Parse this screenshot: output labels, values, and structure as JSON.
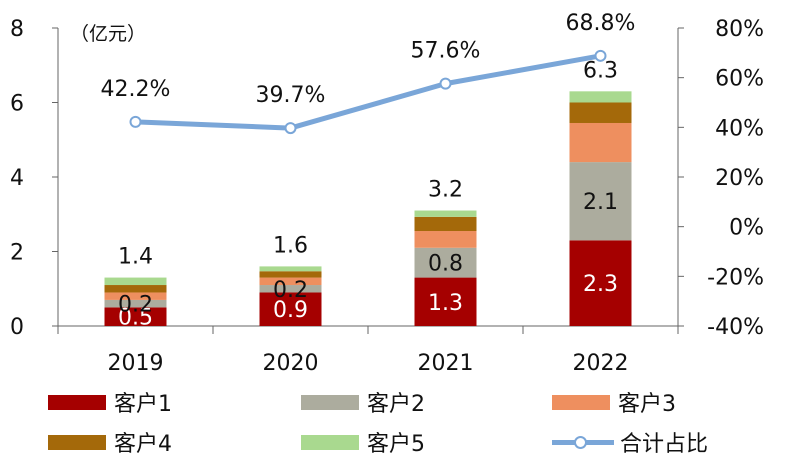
{
  "chart_data": {
    "type": "bar",
    "stacked": true,
    "categories": [
      "2019",
      "2020",
      "2021",
      "2022"
    ],
    "unit_label": "（亿元）",
    "y_left": {
      "range": [
        0,
        8
      ],
      "ticks": [
        "0",
        "2",
        "4",
        "6",
        "8"
      ]
    },
    "y_right": {
      "range": [
        -40,
        80
      ],
      "ticks": [
        "-40%",
        "-20%",
        "0%",
        "20%",
        "40%",
        "60%",
        "80%"
      ]
    },
    "series": [
      {
        "name": "客户1",
        "color": "#a50000",
        "values": [
          0.5,
          0.9,
          1.3,
          2.3
        ],
        "labels": [
          "0.5",
          "0.9",
          "1.3",
          "2.3"
        ]
      },
      {
        "name": "客户2",
        "color": "#acac9e",
        "values": [
          0.2,
          0.2,
          0.8,
          2.1
        ],
        "labels": [
          "0.2",
          "0.2",
          "0.8",
          "2.1"
        ]
      },
      {
        "name": "客户3",
        "color": "#ee8f5f",
        "values": [
          0.2,
          0.2,
          0.45,
          1.05
        ],
        "labels": [
          "",
          "",
          "",
          ""
        ]
      },
      {
        "name": "客户4",
        "color": "#a4690a",
        "values": [
          0.2,
          0.17,
          0.38,
          0.55
        ],
        "labels": [
          "",
          "",
          "",
          ""
        ]
      },
      {
        "name": "客户5",
        "color": "#a9d98f",
        "values": [
          0.2,
          0.13,
          0.17,
          0.3
        ],
        "labels": [
          "",
          "",
          "",
          ""
        ]
      }
    ],
    "totals": [
      "1.4",
      "1.6",
      "3.2",
      "6.3"
    ],
    "line": {
      "name": "合计占比",
      "color": "#7aa6d8",
      "axis": "right",
      "values": [
        42.2,
        39.7,
        57.6,
        68.8
      ],
      "labels": [
        "42.2%",
        "39.7%",
        "57.6%",
        "68.8%"
      ]
    },
    "grid": false,
    "legend_position": "bottom"
  }
}
